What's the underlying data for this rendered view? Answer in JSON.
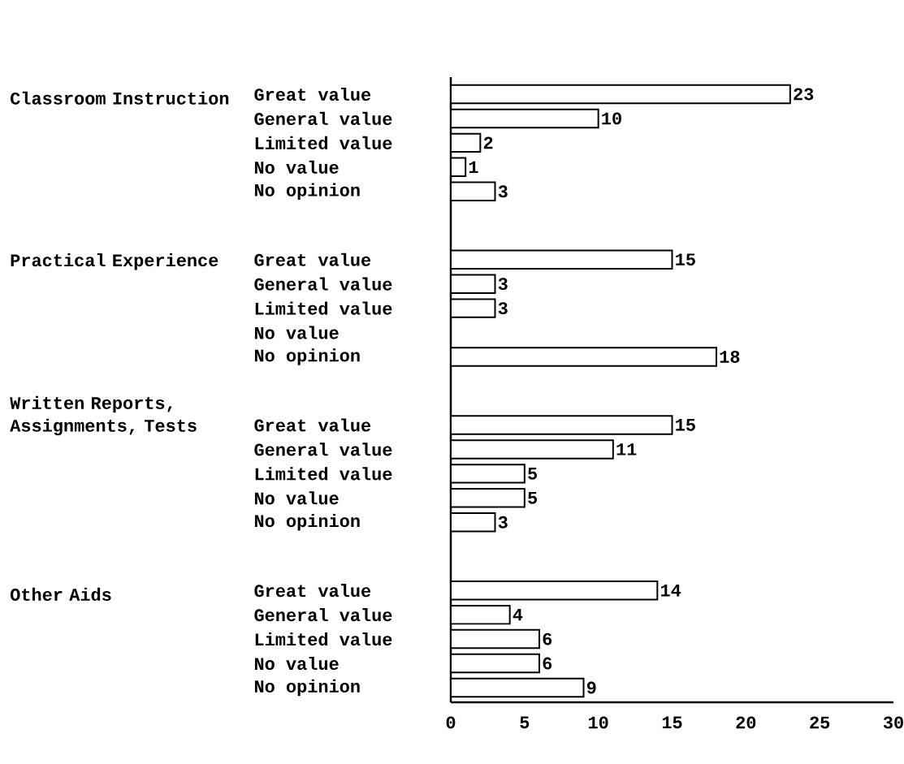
{
  "chart_data": {
    "type": "bar",
    "orientation": "horizontal",
    "categories": [
      "Great value",
      "General value",
      "Limited value",
      "No value",
      "No opinion",
      "Great value",
      "General value",
      "Limited value",
      "No value",
      "No opinion",
      "Great value",
      "General value",
      "Limited value",
      "No value",
      "No opinion",
      "Great value",
      "General value",
      "Limited value",
      "No value",
      "No opinion"
    ],
    "values": [
      23,
      10,
      2,
      1,
      3,
      15,
      3,
      3,
      null,
      18,
      15,
      11,
      5,
      5,
      3,
      14,
      4,
      6,
      6,
      9
    ],
    "color": "#ffffff",
    "xlim": [
      0,
      30
    ],
    "xticks": [
      0,
      5,
      10,
      15,
      20,
      25,
      30
    ],
    "data_labels": true,
    "annotations": [
      "Classroom Instruction",
      "Practical Experience",
      "Written Reports, Assignments, Tests",
      "Other Aids"
    ]
  }
}
